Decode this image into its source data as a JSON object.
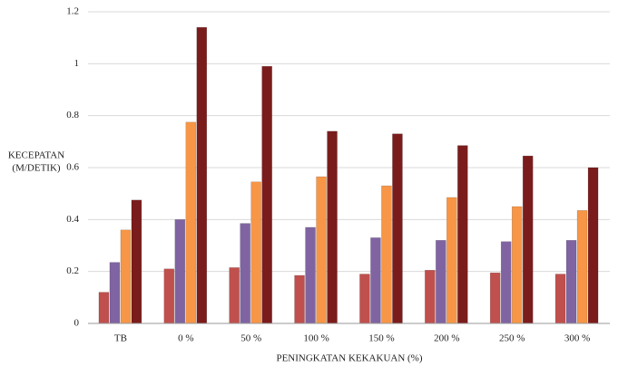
{
  "chart_data": {
    "type": "bar",
    "y_label": [
      "KECEPATAN",
      "(M/DETIK)"
    ],
    "x_label": "PENINGKATAN KEKAKUAN (%)",
    "categories": [
      "TB",
      "0 %",
      "50 %",
      "100 %",
      "150 %",
      "200 %",
      "250 %",
      "300 %"
    ],
    "series": [
      {
        "color": "#c0504d",
        "values": [
          0.12,
          0.21,
          0.215,
          0.185,
          0.19,
          0.205,
          0.195,
          0.19
        ]
      },
      {
        "color": "#8064a2",
        "values": [
          0.235,
          0.4,
          0.385,
          0.37,
          0.33,
          0.32,
          0.315,
          0.32
        ]
      },
      {
        "color": "#f79646",
        "values": [
          0.36,
          0.775,
          0.545,
          0.565,
          0.53,
          0.485,
          0.45,
          0.435
        ]
      },
      {
        "color": "#7b1c1c",
        "values": [
          0.475,
          1.14,
          0.99,
          0.74,
          0.73,
          0.685,
          0.645,
          0.6
        ]
      }
    ],
    "ylim": [
      0,
      1.2
    ],
    "yticks": [
      0,
      0.2,
      0.4,
      0.6,
      0.8,
      1,
      1.2
    ],
    "grid": true
  }
}
